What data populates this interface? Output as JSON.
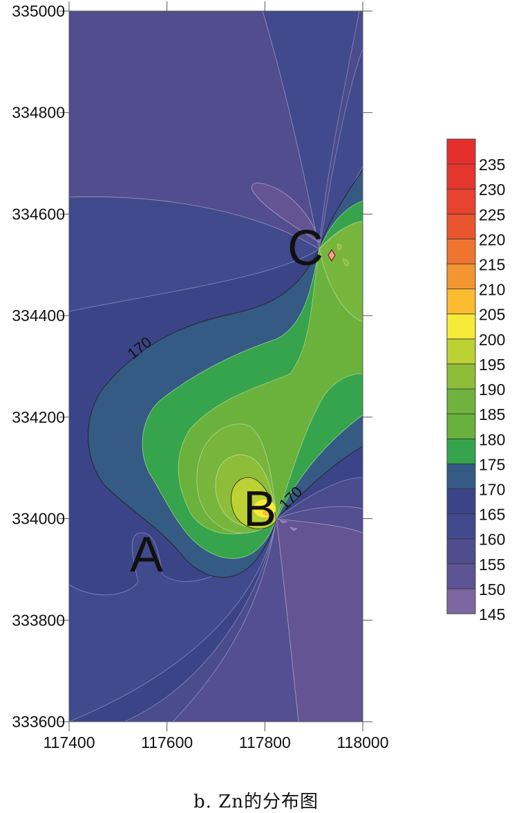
{
  "chart_data": {
    "type": "contour",
    "title": "",
    "caption": "b. Zn的分布图",
    "xlabel": "",
    "ylabel": "",
    "xlim": [
      117400,
      118000
    ],
    "ylim": [
      333600,
      335000
    ],
    "x_ticks": [
      117400,
      117600,
      117800,
      118000
    ],
    "y_ticks": [
      333600,
      333800,
      334000,
      334200,
      334400,
      334600,
      334800,
      335000
    ],
    "levels": [
      145,
      150,
      155,
      160,
      165,
      170,
      175,
      180,
      185,
      190,
      195,
      200,
      205,
      210,
      215,
      220,
      225,
      230,
      235,
      240
    ],
    "legend_labels": [
      "145",
      "150",
      "155",
      "160",
      "165",
      "170",
      "175",
      "180",
      "185",
      "190",
      "195",
      "200",
      "205",
      "210",
      "215",
      "220",
      "225",
      "230",
      "235"
    ],
    "band_colors": [
      "#7d67a0",
      "#5e5394",
      "#4f4d8e",
      "#414a8c",
      "#3c4488",
      "#355a84",
      "#36a44c",
      "#67b13c",
      "#6fb23e",
      "#8ebd3a",
      "#bcd133",
      "#f6eb38",
      "#fbbc2f",
      "#f39530",
      "#ef7430",
      "#e9552e",
      "#e8432e",
      "#e5362e",
      "#e42f2d"
    ],
    "legend_placement": "right",
    "contour_labels": [
      "170",
      "170"
    ],
    "annotations": [
      {
        "text": "A",
        "x": 117550,
        "y": 333920
      },
      {
        "text": "B",
        "x": 117790,
        "y": 334030
      },
      {
        "text": "C",
        "x": 117910,
        "y": 334540
      }
    ],
    "features": [
      {
        "name": "high at B",
        "x": 117790,
        "y": 334030,
        "value_range": [
          200,
          210
        ]
      },
      {
        "name": "low zone southeast of B",
        "value_range": [
          145,
          150
        ]
      }
    ]
  }
}
